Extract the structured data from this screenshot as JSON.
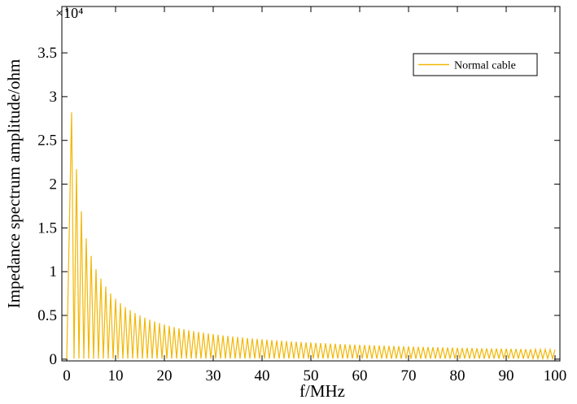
{
  "chart_data": {
    "type": "line",
    "xlabel": "f/MHz",
    "ylabel": "Impedance  spectrum amplitude/ohm",
    "y_multiplier": "×10⁴",
    "x": [
      0,
      1,
      1.5,
      2,
      2.5,
      3,
      3.5,
      4,
      4.5,
      5,
      5.5,
      6,
      6.5,
      7,
      7.5,
      8,
      8.5,
      9,
      9.5,
      10,
      10.5,
      11,
      11.5,
      12,
      12.5,
      13,
      13.5,
      14,
      14.5,
      15,
      15.5,
      16,
      16.5,
      17,
      17.5,
      18,
      18.5,
      19,
      19.5,
      20,
      20.5,
      21,
      21.5,
      22,
      22.5,
      23,
      23.5,
      24,
      24.5,
      25,
      25.5,
      26,
      26.5,
      27,
      27.5,
      28,
      28.5,
      29,
      29.5,
      30,
      30.5,
      31,
      31.5,
      32,
      32.5,
      33,
      33.5,
      34,
      34.5,
      35,
      35.5,
      36,
      36.5,
      37,
      37.5,
      38,
      38.5,
      39,
      39.5,
      40,
      40.5,
      41,
      41.5,
      42,
      42.5,
      43,
      43.5,
      44,
      44.5,
      45,
      45.5,
      46,
      46.5,
      47,
      47.5,
      48,
      48.5,
      49,
      49.5,
      50,
      50.5,
      51,
      51.5,
      52,
      52.5,
      53,
      53.5,
      54,
      54.5,
      55,
      55.5,
      56,
      56.5,
      57,
      57.5,
      58,
      58.5,
      59,
      59.5,
      60,
      60.5,
      61,
      61.5,
      62,
      62.5,
      63,
      63.5,
      64,
      64.5,
      65,
      65.5,
      66,
      66.5,
      67,
      67.5,
      68,
      68.5,
      69,
      69.5,
      70,
      70.5,
      71,
      71.5,
      72,
      72.5,
      73,
      73.5,
      74,
      74.5,
      75,
      75.5,
      76,
      76.5,
      77,
      77.5,
      78,
      78.5,
      79,
      79.5,
      80,
      80.5,
      81,
      81.5,
      82,
      82.5,
      83,
      83.5,
      84,
      84.5,
      85,
      85.5,
      86,
      86.5,
      87,
      87.5,
      88,
      88.5,
      89,
      89.5,
      90,
      90.5,
      91,
      91.5,
      92,
      92.5,
      93,
      93.5,
      94,
      94.5,
      95,
      95.5,
      96,
      96.5,
      97,
      97.5,
      98,
      98.5,
      99,
      99.5,
      100
    ],
    "series": [
      {
        "name": "Normal cable",
        "color": "#f2b705",
        "values": [
          0,
          28200,
          60,
          21700,
          60,
          16900,
          60,
          13800,
          60,
          11800,
          60,
          10300,
          60,
          9200,
          60,
          8300,
          60,
          7500,
          60,
          6900,
          60,
          6400,
          60,
          5960,
          60,
          5600,
          60,
          5270,
          60,
          4990,
          60,
          4740,
          60,
          4510,
          60,
          4310,
          60,
          4130,
          60,
          3960,
          60,
          3810,
          60,
          3670,
          60,
          3540,
          60,
          3430,
          60,
          3310,
          60,
          3210,
          60,
          3120,
          60,
          3030,
          60,
          2940,
          60,
          2870,
          60,
          2790,
          60,
          2720,
          60,
          2660,
          60,
          2590,
          60,
          2530,
          60,
          2480,
          60,
          2420,
          60,
          2370,
          60,
          2320,
          60,
          2280,
          60,
          2230,
          60,
          2190,
          60,
          2150,
          60,
          2110,
          60,
          2070,
          60,
          2030,
          60,
          2000,
          60,
          1960,
          60,
          1930,
          60,
          1900,
          60,
          1870,
          60,
          1840,
          60,
          1810,
          60,
          1780,
          60,
          1760,
          60,
          1730,
          60,
          1710,
          60,
          1680,
          60,
          1660,
          60,
          1640,
          60,
          1620,
          60,
          1600,
          60,
          1580,
          60,
          1560,
          60,
          1540,
          60,
          1520,
          60,
          1500,
          60,
          1480,
          60,
          1470,
          60,
          1450,
          60,
          1430,
          60,
          1420,
          60,
          1400,
          60,
          1390,
          60,
          1370,
          60,
          1360,
          60,
          1340,
          60,
          1330,
          60,
          1320,
          60,
          1300,
          60,
          1290,
          60,
          1280,
          60,
          1270,
          60,
          1250,
          60,
          1240,
          60,
          1230,
          60,
          1220,
          60,
          1210,
          60,
          1200,
          60,
          1190,
          60,
          1180,
          60,
          1170,
          60,
          1160,
          60,
          1150,
          60,
          1140,
          60,
          1130,
          60,
          1120,
          60,
          1110,
          60,
          1100,
          60,
          1090
        ]
      }
    ],
    "xlim": [
      -1,
      101
    ],
    "xticks": [
      0,
      10,
      20,
      30,
      40,
      50,
      60,
      70,
      80,
      90,
      100
    ],
    "ylim": [
      -200,
      40300
    ],
    "yticks": [
      {
        "value": 0,
        "label": "0"
      },
      {
        "value": 5000,
        "label": "0.5"
      },
      {
        "value": 10000,
        "label": "1"
      },
      {
        "value": 15000,
        "label": "1.5"
      },
      {
        "value": 20000,
        "label": "2"
      },
      {
        "value": 25000,
        "label": "2.5"
      },
      {
        "value": 30000,
        "label": "3"
      },
      {
        "value": 35000,
        "label": "3.5"
      }
    ],
    "grid": false,
    "legend": "upper right"
  }
}
